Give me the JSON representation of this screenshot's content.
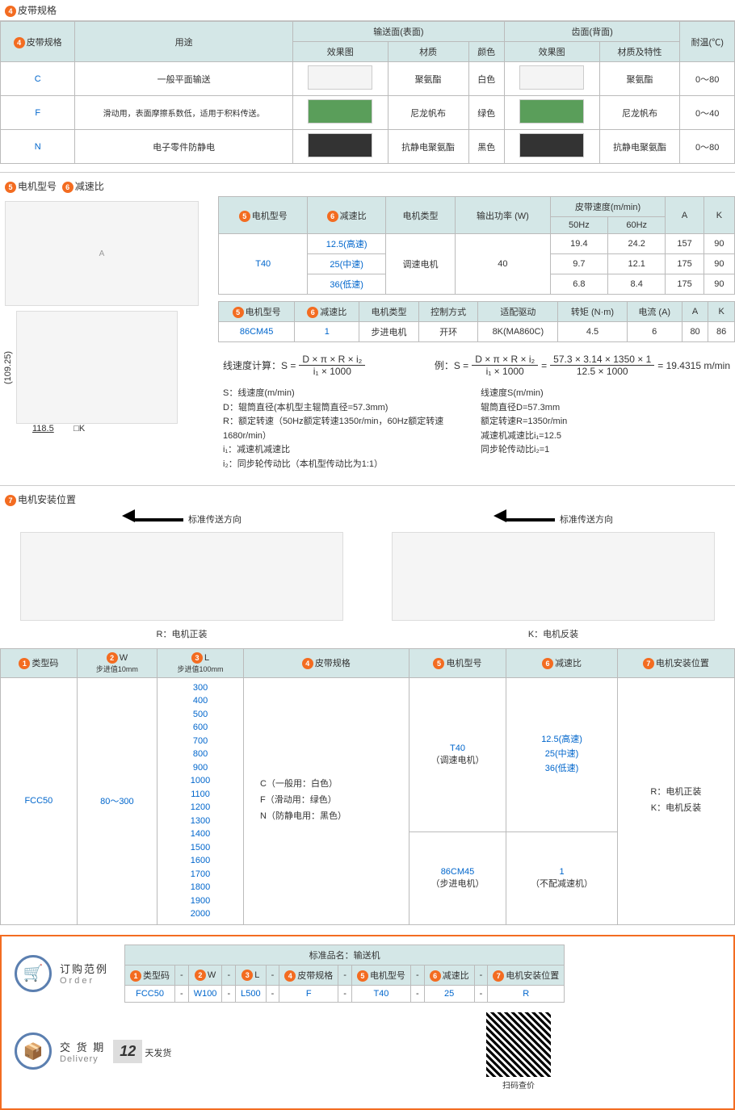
{
  "sec4": {
    "title": "皮带规格",
    "num": "4",
    "headers": {
      "belt_spec": "皮带规格",
      "usage": "用途",
      "conveying_face": "输送面(表面)",
      "tooth_face": "齿面(背面)",
      "effect": "效果图",
      "material": "材质",
      "color": "颜色",
      "material_char": "材质及特性",
      "temp": "耐温(℃)"
    },
    "rows": [
      {
        "code": "C",
        "usage": "一般平面输送",
        "mat1": "聚氨酯",
        "color": "白色",
        "mat2": "聚氨酯",
        "temp": "0～80"
      },
      {
        "code": "F",
        "usage": "滑动用，表面摩擦系数低，适用于积料传送。",
        "mat1": "尼龙帆布",
        "color": "绿色",
        "mat2": "尼龙帆布",
        "temp": "0～40"
      },
      {
        "code": "N",
        "usage": "电子零件防静电",
        "mat1": "抗静电聚氨酯",
        "color": "黑色",
        "mat2": "抗静电聚氨酯",
        "temp": "0～80"
      }
    ]
  },
  "sec56": {
    "title5": "电机型号",
    "title6": "减速比",
    "num5": "5",
    "num6": "6",
    "tbl1_headers": {
      "motor_model": "电机型号",
      "ratio": "减速比",
      "motor_type": "电机类型",
      "power": "输出功率 (W)",
      "belt_speed": "皮带速度(m/min)",
      "hz50": "50Hz",
      "hz60": "60Hz",
      "A": "A",
      "K": "K"
    },
    "tbl1_model": "T40",
    "tbl1_type": "调速电机",
    "tbl1_power": "40",
    "tbl1_rows": [
      {
        "ratio": "12.5(高速)",
        "s50": "19.4",
        "s60": "24.2",
        "A": "157",
        "K": "90"
      },
      {
        "ratio": "25(中速)",
        "s50": "9.7",
        "s60": "12.1",
        "A": "175",
        "K": "90"
      },
      {
        "ratio": "36(低速)",
        "s50": "6.8",
        "s60": "8.4",
        "A": "175",
        "K": "90"
      }
    ],
    "tbl2_headers": {
      "motor_model": "电机型号",
      "ratio": "减速比",
      "motor_type": "电机类型",
      "control": "控制方式",
      "driver": "适配驱动",
      "torque": "转矩 (N·m)",
      "current": "电流 (A)",
      "A": "A",
      "K": "K"
    },
    "tbl2_row": {
      "model": "86CM45",
      "ratio": "1",
      "type": "步进电机",
      "control": "开环",
      "driver": "8K(MA860C)",
      "torque": "4.5",
      "current": "6",
      "A": "80",
      "K": "86"
    },
    "formula_label": "线速度计算：S =",
    "formula_top": "D × π × R × i₂",
    "formula_bot": "i₁ × 1000",
    "example_label": "例：S =",
    "example_mid_top": "D × π × R × i₂",
    "example_mid_bot": "i₁ × 1000",
    "example_right_top": "57.3 × 3.14 × 1350 × 1",
    "example_right_bot": "12.5 × 1000",
    "example_result": "= 19.4315 m/min",
    "notes_left": [
      "S：线速度(m/min)",
      "D：辊筒直径(本机型主辊筒直径=57.3mm)",
      "R：额定转速（50Hz额定转速1350r/min，60Hz额定转速1680r/min）",
      "i₁：减速机减速比",
      "i₂：同步轮传动比（本机型传动比为1:1）"
    ],
    "notes_right": [
      "线速度S(m/min)",
      "辊筒直径D=57.3mm",
      "额定转速R=1350r/min",
      "减速机减速比i₁=12.5",
      "同步轮传动比i₂=1"
    ],
    "dim_left": "(109.25)",
    "dim_bot": "118.5",
    "dim_k": "□K"
  },
  "sec7": {
    "title": "电机安装位置",
    "num": "7",
    "direction": "标准传送方向",
    "r_label": "R：电机正装",
    "k_label": "K：电机反装"
  },
  "bottom_table": {
    "headers": {
      "code": "类型码",
      "w": "W",
      "w_sub": "步进值10mm",
      "l": "L",
      "l_sub": "步进值100mm",
      "belt": "皮带规格",
      "motor": "电机型号",
      "ratio": "减速比",
      "install": "电机安装位置"
    },
    "nums": [
      "1",
      "2",
      "3",
      "4",
      "5",
      "6",
      "7"
    ],
    "code": "FCC50",
    "w": "80～300",
    "l_values": [
      "300",
      "400",
      "500",
      "600",
      "700",
      "800",
      "900",
      "1000",
      "1100",
      "1200",
      "1300",
      "1400",
      "1500",
      "1600",
      "1700",
      "1800",
      "1900",
      "2000"
    ],
    "belt_values": [
      "C（一般用：白色）",
      "F（滑动用：绿色）",
      "N（防静电用：黑色）"
    ],
    "motor1": "T40",
    "motor1_sub": "（调速电机）",
    "motor2": "86CM45",
    "motor2_sub": "（步进电机）",
    "ratio1": [
      "12.5(高速)",
      "25(中速)",
      "36(低速)"
    ],
    "ratio2": "1",
    "ratio2_sub": "（不配减速机）",
    "install": [
      "R：电机正装",
      "K：电机反装"
    ]
  },
  "order": {
    "order_label": "订购范例",
    "order_en": "Order",
    "product_name_label": "标准品名：输送机",
    "row_labels": [
      "类型码",
      "W",
      "L",
      "皮带规格",
      "电机型号",
      "减速比",
      "电机安装位置"
    ],
    "row_nums": [
      "1",
      "2",
      "3",
      "4",
      "5",
      "6",
      "7"
    ],
    "row_values": [
      "FCC50",
      "W100",
      "L500",
      "F",
      "T40",
      "25",
      "R"
    ],
    "sep": "-",
    "delivery_label": "交 货 期",
    "delivery_en": "Delivery",
    "delivery_days": "12",
    "delivery_unit": "天发货",
    "qr_label": "扫码查价"
  }
}
